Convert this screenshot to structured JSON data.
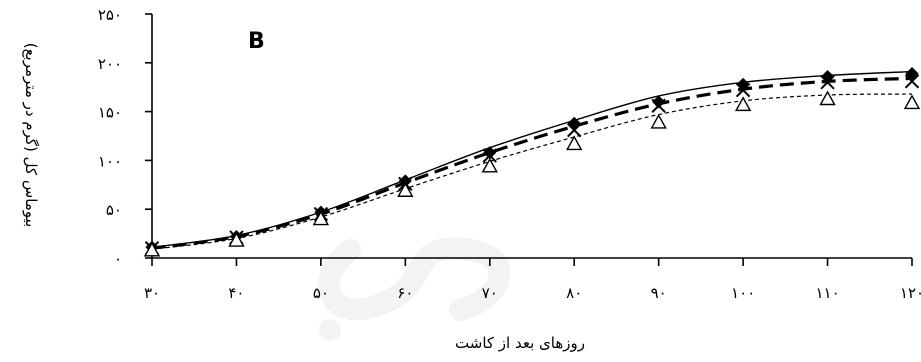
{
  "chart_data": {
    "type": "line",
    "panel_label": "B",
    "xlabel": "روزهای بعد از کاشت",
    "ylabel": "بیوماس کل (گرم در مترمربع)",
    "xlim": [
      30,
      120
    ],
    "ylim": [
      0,
      250
    ],
    "x_ticks": [
      30,
      40,
      50,
      60,
      70,
      80,
      90,
      100,
      110,
      120
    ],
    "x_tick_labels": [
      "۳۰",
      "۴۰",
      "۵۰",
      "۶۰",
      "۷۰",
      "۸۰",
      "۹۰",
      "۱۰۰",
      "۱۱۰",
      "۱۲۰"
    ],
    "y_ticks": [
      0,
      50,
      100,
      150,
      200,
      250
    ],
    "y_tick_labels": [
      "۰",
      "۵۰",
      "۱۰۰",
      "۱۵۰",
      "۲۰۰",
      "۲۵۰"
    ],
    "grid": false,
    "series": [
      {
        "style": "solid",
        "marker": "diamond",
        "color": "#000000",
        "x": [
          30,
          40,
          50,
          60,
          70,
          80,
          90,
          100,
          110,
          120
        ],
        "points": [
          11,
          22,
          47,
          79,
          108,
          138,
          160,
          178,
          186,
          189
        ],
        "curve": [
          11,
          23,
          47,
          80,
          113,
          141,
          166,
          180,
          187,
          191
        ]
      },
      {
        "style": "dashed",
        "marker": "x",
        "color": "#000000",
        "x": [
          30,
          40,
          50,
          60,
          70,
          80,
          90,
          100,
          110,
          120
        ],
        "points": [
          10,
          21,
          45,
          76,
          105,
          131,
          156,
          172,
          180,
          181
        ],
        "curve": [
          10,
          22,
          45,
          77,
          108,
          135,
          158,
          173,
          181,
          184
        ]
      },
      {
        "style": "dotted",
        "marker": "triangle",
        "color": "#000000",
        "x": [
          30,
          40,
          50,
          60,
          70,
          80,
          90,
          100,
          110,
          120
        ],
        "points": [
          8,
          18,
          40,
          69,
          94,
          117,
          139,
          157,
          163,
          159
        ],
        "curve": [
          9,
          20,
          42,
          71,
          99,
          124,
          147,
          161,
          167,
          168
        ]
      }
    ]
  },
  "watermark": {
    "color": "#f3f3f3"
  }
}
